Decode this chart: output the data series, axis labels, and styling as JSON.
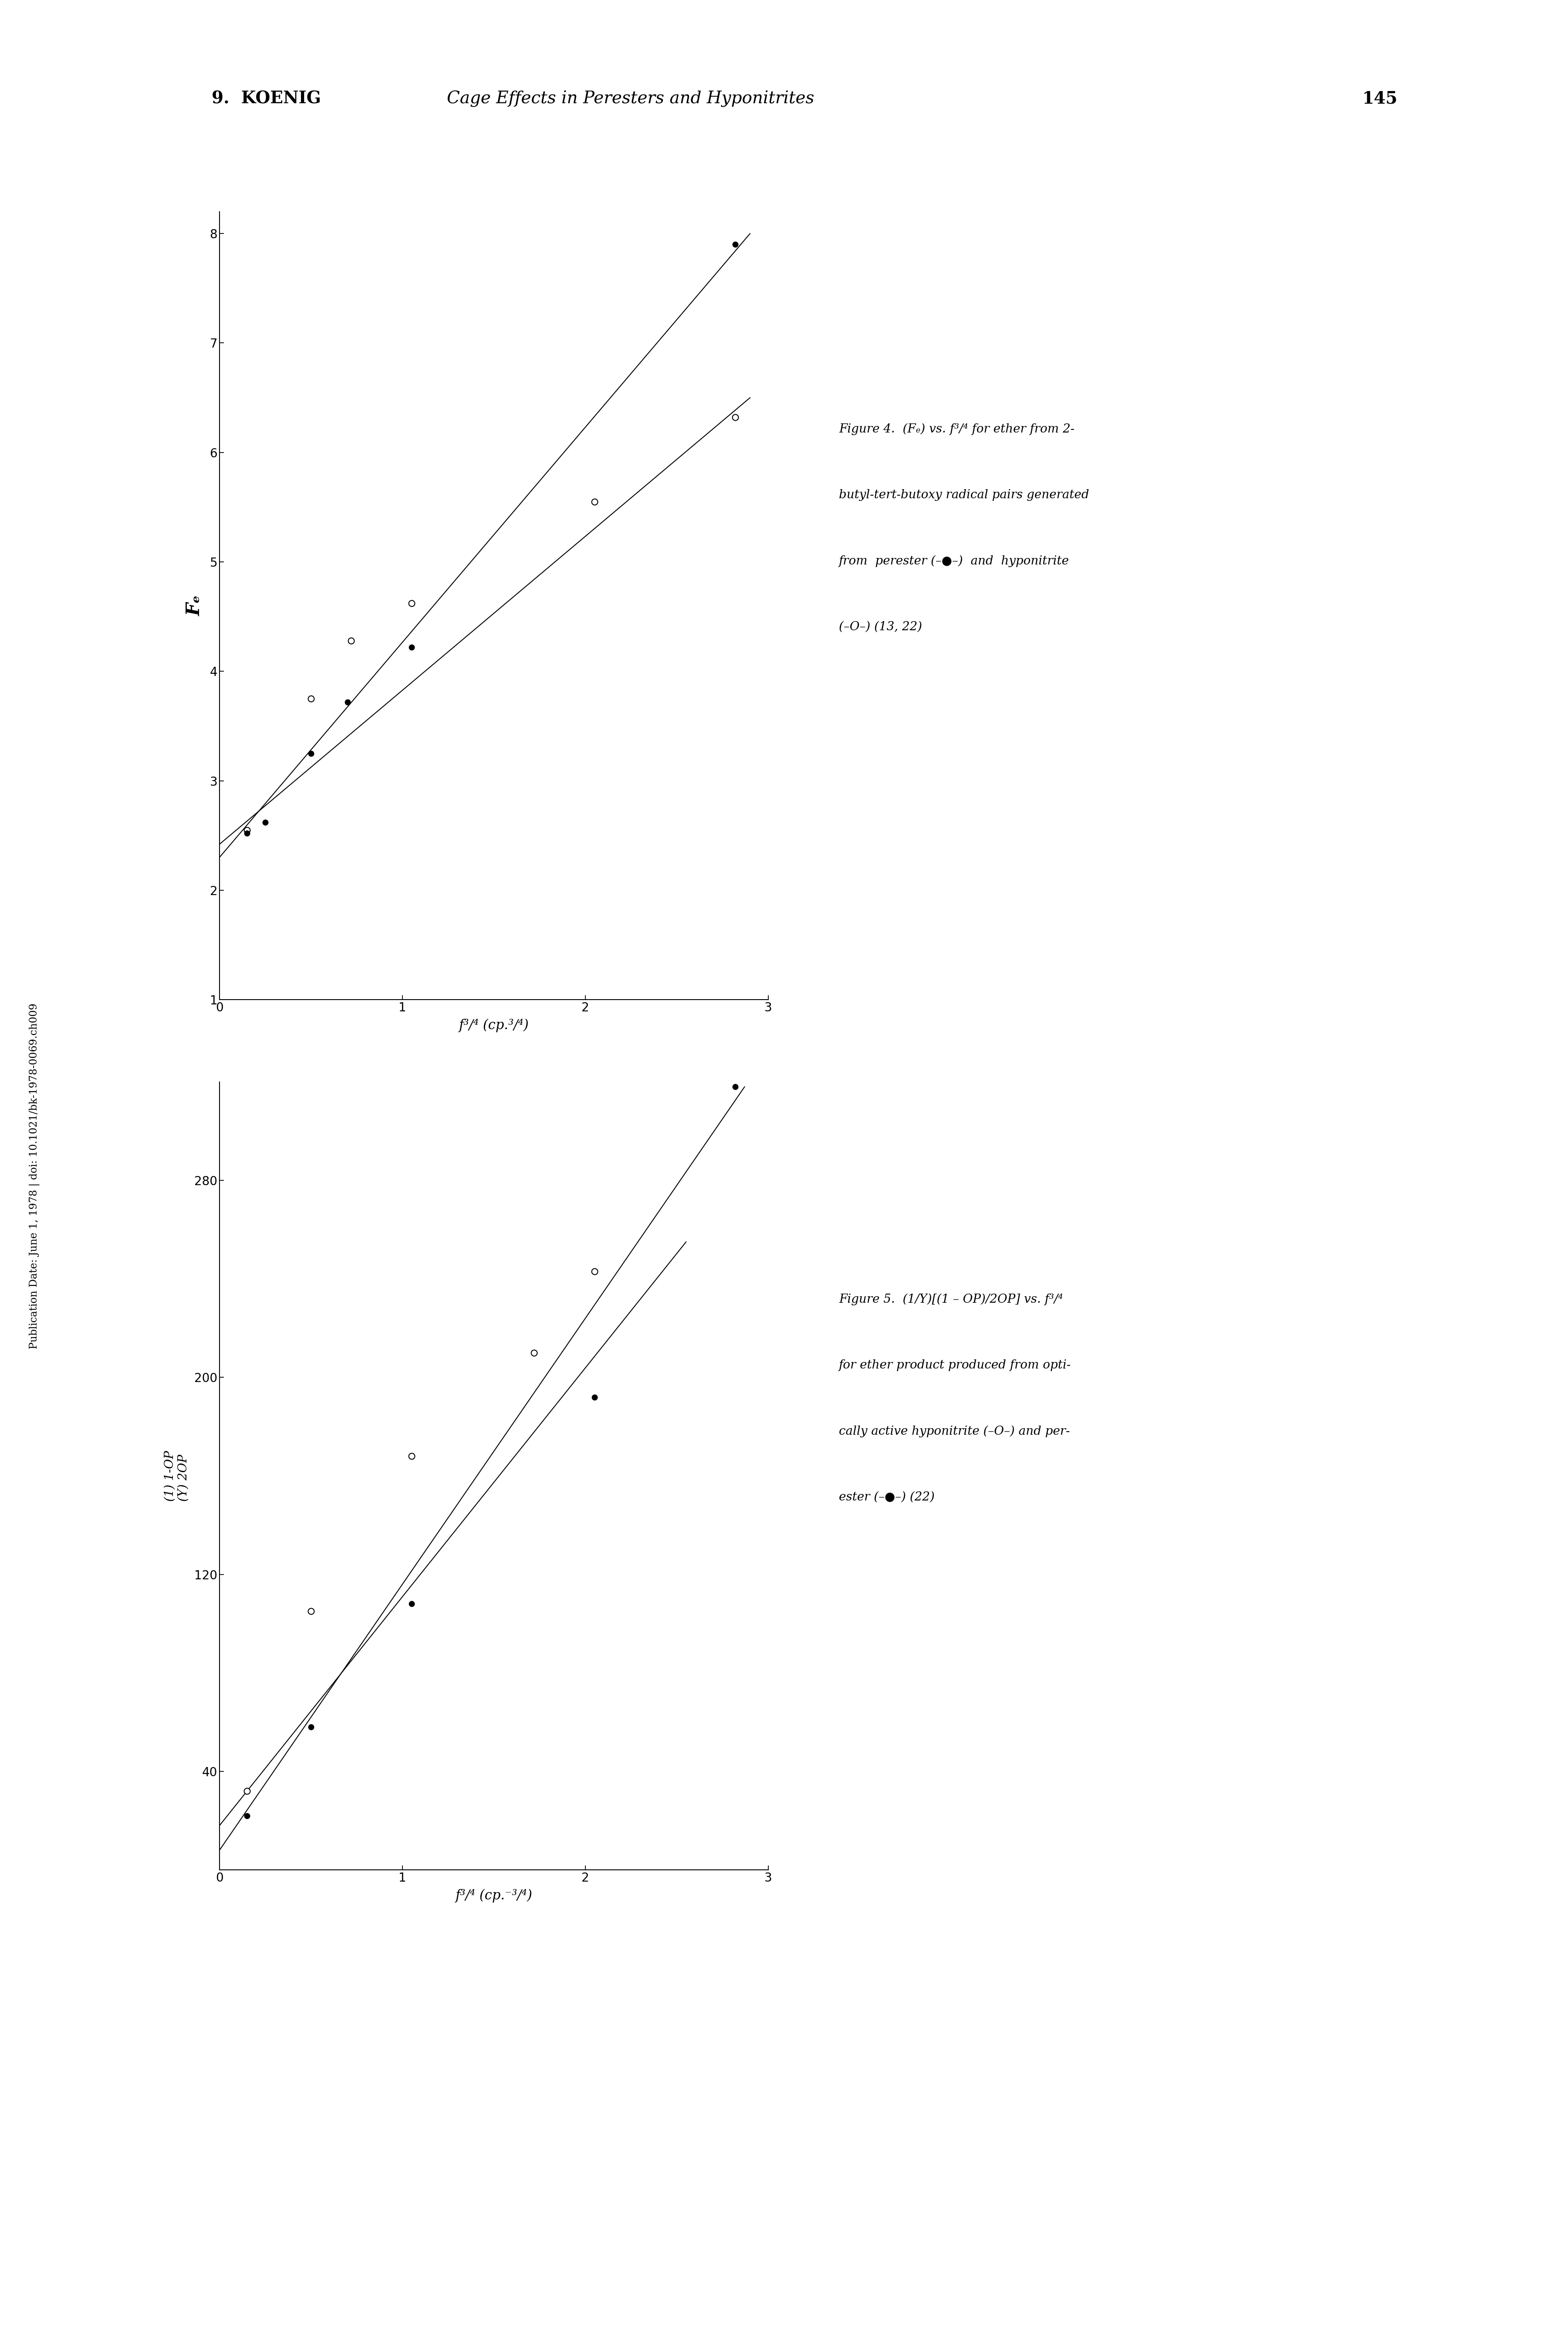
{
  "page_header_left": "9.  KOENIG",
  "page_header_center": "Cage Effects in Peresters and Hyponitrites",
  "page_number": "145",
  "sidebar_text": "Publication Date: June 1, 1978 | doi: 10.1021/bk-1978-0069.ch009",
  "fig4": {
    "ylabel": "Fₑ",
    "xlabel": "f³/⁴ (cp.³/⁴)",
    "xlim": [
      0,
      3
    ],
    "ylim": [
      1,
      8.2
    ],
    "yticks": [
      1,
      2,
      3,
      4,
      5,
      6,
      7,
      8
    ],
    "xticks": [
      0,
      1,
      2,
      3
    ],
    "caption_line1": "Figure 4.  (Fₑ) vs. f³/⁴ for ether from 2-",
    "caption_line2": "butyl-tert-butoxy radical pairs generated",
    "caption_line3": "from  perester (–●–)  and  hyponitrite",
    "caption_line4": "(–O–) (13, 22)",
    "perester_x": [
      0.15,
      0.25,
      0.5,
      0.7,
      1.05,
      2.82
    ],
    "perester_y": [
      2.52,
      2.62,
      3.25,
      3.72,
      4.22,
      7.9
    ],
    "per_fit_x": [
      0.0,
      2.9
    ],
    "per_fit_y": [
      2.3,
      8.0
    ],
    "hypo_x": [
      0.15,
      0.5,
      0.72,
      1.05,
      2.05,
      2.82
    ],
    "hypo_y": [
      2.55,
      3.75,
      4.28,
      4.62,
      5.55,
      6.32
    ],
    "hypo_fit_x": [
      0.0,
      2.9
    ],
    "hypo_fit_y": [
      2.42,
      6.5
    ]
  },
  "fig5": {
    "ylabel_line1": "(1) 1-OP",
    "ylabel_line2": "(Y) 2OP",
    "xlabel": "f³/⁴ (cp.⁻³/⁴)",
    "xlim": [
      0,
      3
    ],
    "ylim": [
      0,
      320
    ],
    "yticks": [
      40,
      120,
      200,
      280
    ],
    "xticks": [
      0,
      1,
      2,
      3
    ],
    "caption_line1": "Figure 5.  (1/Y)[(1 – OP)/2OP] vs. f³/⁴",
    "caption_line2": "for ether product produced from opti-",
    "caption_line3": "cally active hyponitrite (–O–) and per-",
    "caption_line4": "ester (–●–) (22)",
    "perester_x": [
      0.15,
      0.5,
      1.05,
      2.05,
      2.82
    ],
    "perester_y": [
      22,
      58,
      108,
      192,
      318
    ],
    "per_fit_x": [
      0.0,
      2.87
    ],
    "per_fit_y": [
      8,
      318
    ],
    "hypo_x": [
      0.15,
      0.5,
      1.05,
      1.72,
      2.05
    ],
    "hypo_y": [
      32,
      105,
      168,
      210,
      243
    ],
    "hypo_fit_x": [
      0.0,
      2.55
    ],
    "hypo_fit_y": [
      18,
      255
    ]
  },
  "bg_color": "#ffffff",
  "text_color": "#000000"
}
